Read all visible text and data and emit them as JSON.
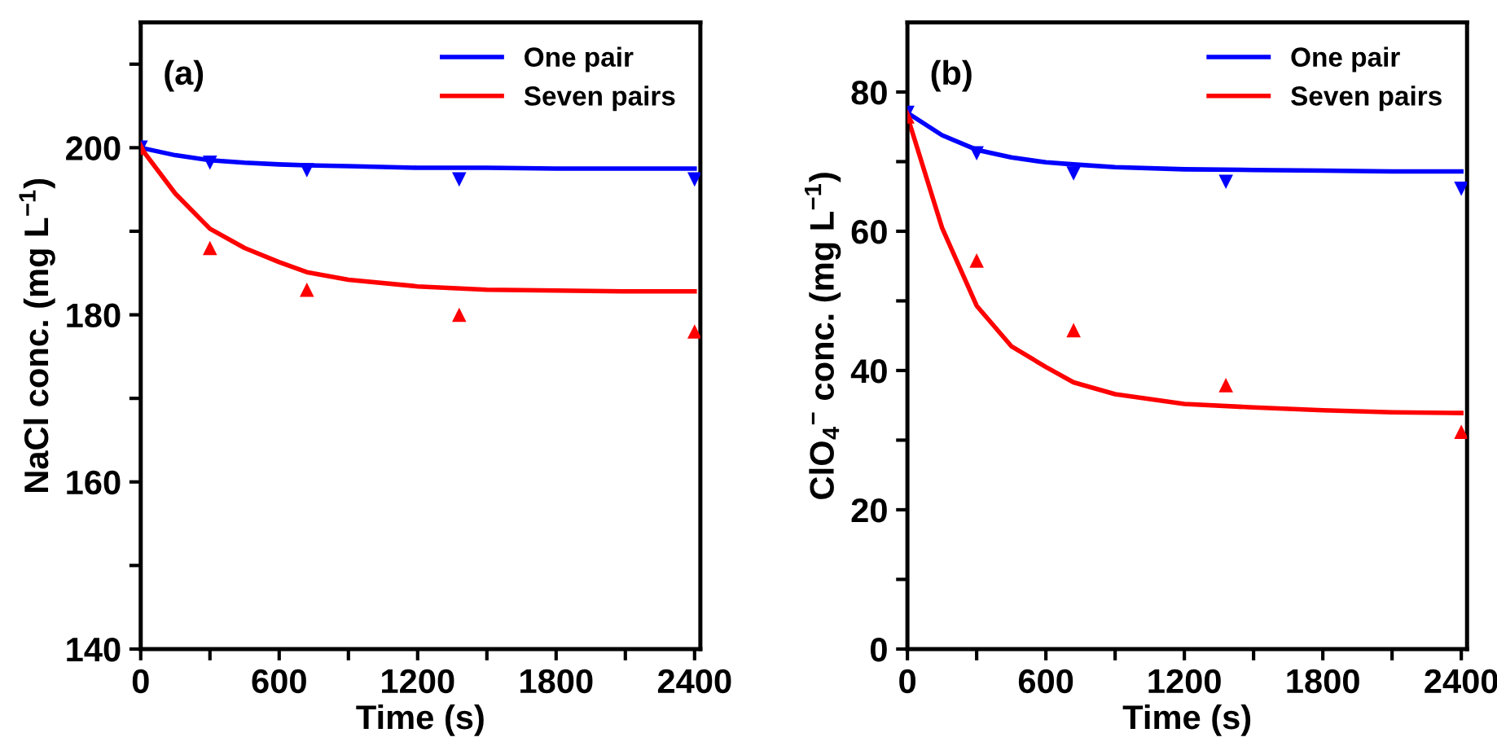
{
  "chart_data": [
    {
      "type": "line",
      "title": "(a)",
      "xlabel": "Time (s)",
      "ylabel": "NaCl conc. (mg L$^{−1}$)",
      "xlim": [
        0,
        2425
      ],
      "ylim": [
        140,
        215
      ],
      "xticks": [
        0,
        {
          "value": 300,
          "label": null
        },
        600,
        {
          "value": 900,
          "label": null
        },
        1200,
        {
          "value": 1500,
          "label": null
        },
        1800,
        {
          "value": 2100,
          "label": null
        },
        2400
      ],
      "yticks": [
        140,
        {
          "value": 150,
          "label": null
        },
        160,
        {
          "value": 170,
          "label": null
        },
        180,
        {
          "value": 190,
          "label": null
        },
        200,
        {
          "value": 210,
          "label": null
        }
      ],
      "legend": "top right",
      "grid": false,
      "series": [
        {
          "type": "scatter",
          "marker": "triangle_down",
          "color": "#0000ff",
          "x": [
            0,
            300,
            720,
            1380,
            2400
          ],
          "values": [
            200,
            198.2,
            197.3,
            196.2,
            196.2
          ]
        },
        {
          "type": "scatter",
          "marker": "triangle",
          "color": "#ff0000",
          "x": [
            0,
            300,
            720,
            1380,
            2400
          ],
          "values": [
            200,
            188,
            183,
            180,
            178
          ]
        },
        {
          "name": "One pair",
          "color": "#0000ff",
          "marker": "none",
          "x": [
            0,
            150,
            300,
            450,
            600,
            720,
            900,
            1200,
            1500,
            1800,
            2100,
            2400
          ],
          "values": [
            200,
            199.1,
            198.5,
            198.2,
            198.0,
            197.9,
            197.8,
            197.6,
            197.6,
            197.5,
            197.5,
            197.5
          ]
        },
        {
          "name": "Seven pairs",
          "color": "#ff0000",
          "marker": "none",
          "x": [
            0,
            150,
            300,
            450,
            600,
            720,
            900,
            1200,
            1500,
            1800,
            2100,
            2400
          ],
          "values": [
            200,
            194.5,
            190.3,
            188.0,
            186.3,
            185.1,
            184.2,
            183.4,
            183.0,
            182.9,
            182.8,
            182.8
          ]
        }
      ]
    },
    {
      "type": "line",
      "title": "(b)",
      "xlabel": "Time (s)",
      "ylabel": "ClO$_{4}$$^{−}$ conc. (mg L$^{−1}$)",
      "xlim": [
        0,
        2425
      ],
      "ylim": [
        0,
        90
      ],
      "xticks": [
        0,
        {
          "value": 300,
          "label": null
        },
        600,
        {
          "value": 900,
          "label": null
        },
        1200,
        {
          "value": 1500,
          "label": null
        },
        1800,
        {
          "value": 2100,
          "label": null
        },
        2400
      ],
      "yticks": [
        0,
        {
          "value": 10,
          "label": null
        },
        20,
        {
          "value": 30,
          "label": null
        },
        40,
        {
          "value": 50,
          "label": null
        },
        60,
        {
          "value": 70,
          "label": null
        },
        80
      ],
      "legend": "top right",
      "grid": false,
      "series": [
        {
          "type": "scatter",
          "marker": "triangle_down",
          "color": "#0000ff",
          "x": [
            0,
            300,
            720,
            1380,
            2400
          ],
          "values": [
            77,
            71.2,
            68.3,
            67.1,
            66.1
          ]
        },
        {
          "type": "scatter",
          "marker": "triangle",
          "color": "#ff0000",
          "x": [
            0,
            300,
            720,
            1380,
            2400
          ],
          "values": [
            76.5,
            55.8,
            45.8,
            37.9,
            31.2
          ]
        },
        {
          "name": "One pair",
          "color": "#0000ff",
          "marker": "none",
          "x": [
            0,
            150,
            300,
            450,
            600,
            720,
            900,
            1200,
            1500,
            1800,
            2100,
            2400
          ],
          "values": [
            77,
            73.8,
            71.7,
            70.6,
            69.9,
            69.6,
            69.2,
            68.9,
            68.8,
            68.7,
            68.6,
            68.6
          ]
        },
        {
          "name": "Seven pairs",
          "color": "#ff0000",
          "marker": "none",
          "x": [
            0,
            150,
            300,
            450,
            600,
            720,
            900,
            1200,
            1500,
            1800,
            2100,
            2400
          ],
          "values": [
            76.5,
            60.5,
            49.3,
            43.5,
            40.5,
            38.3,
            36.6,
            35.2,
            34.7,
            34.3,
            34.0,
            33.9
          ]
        }
      ]
    }
  ]
}
